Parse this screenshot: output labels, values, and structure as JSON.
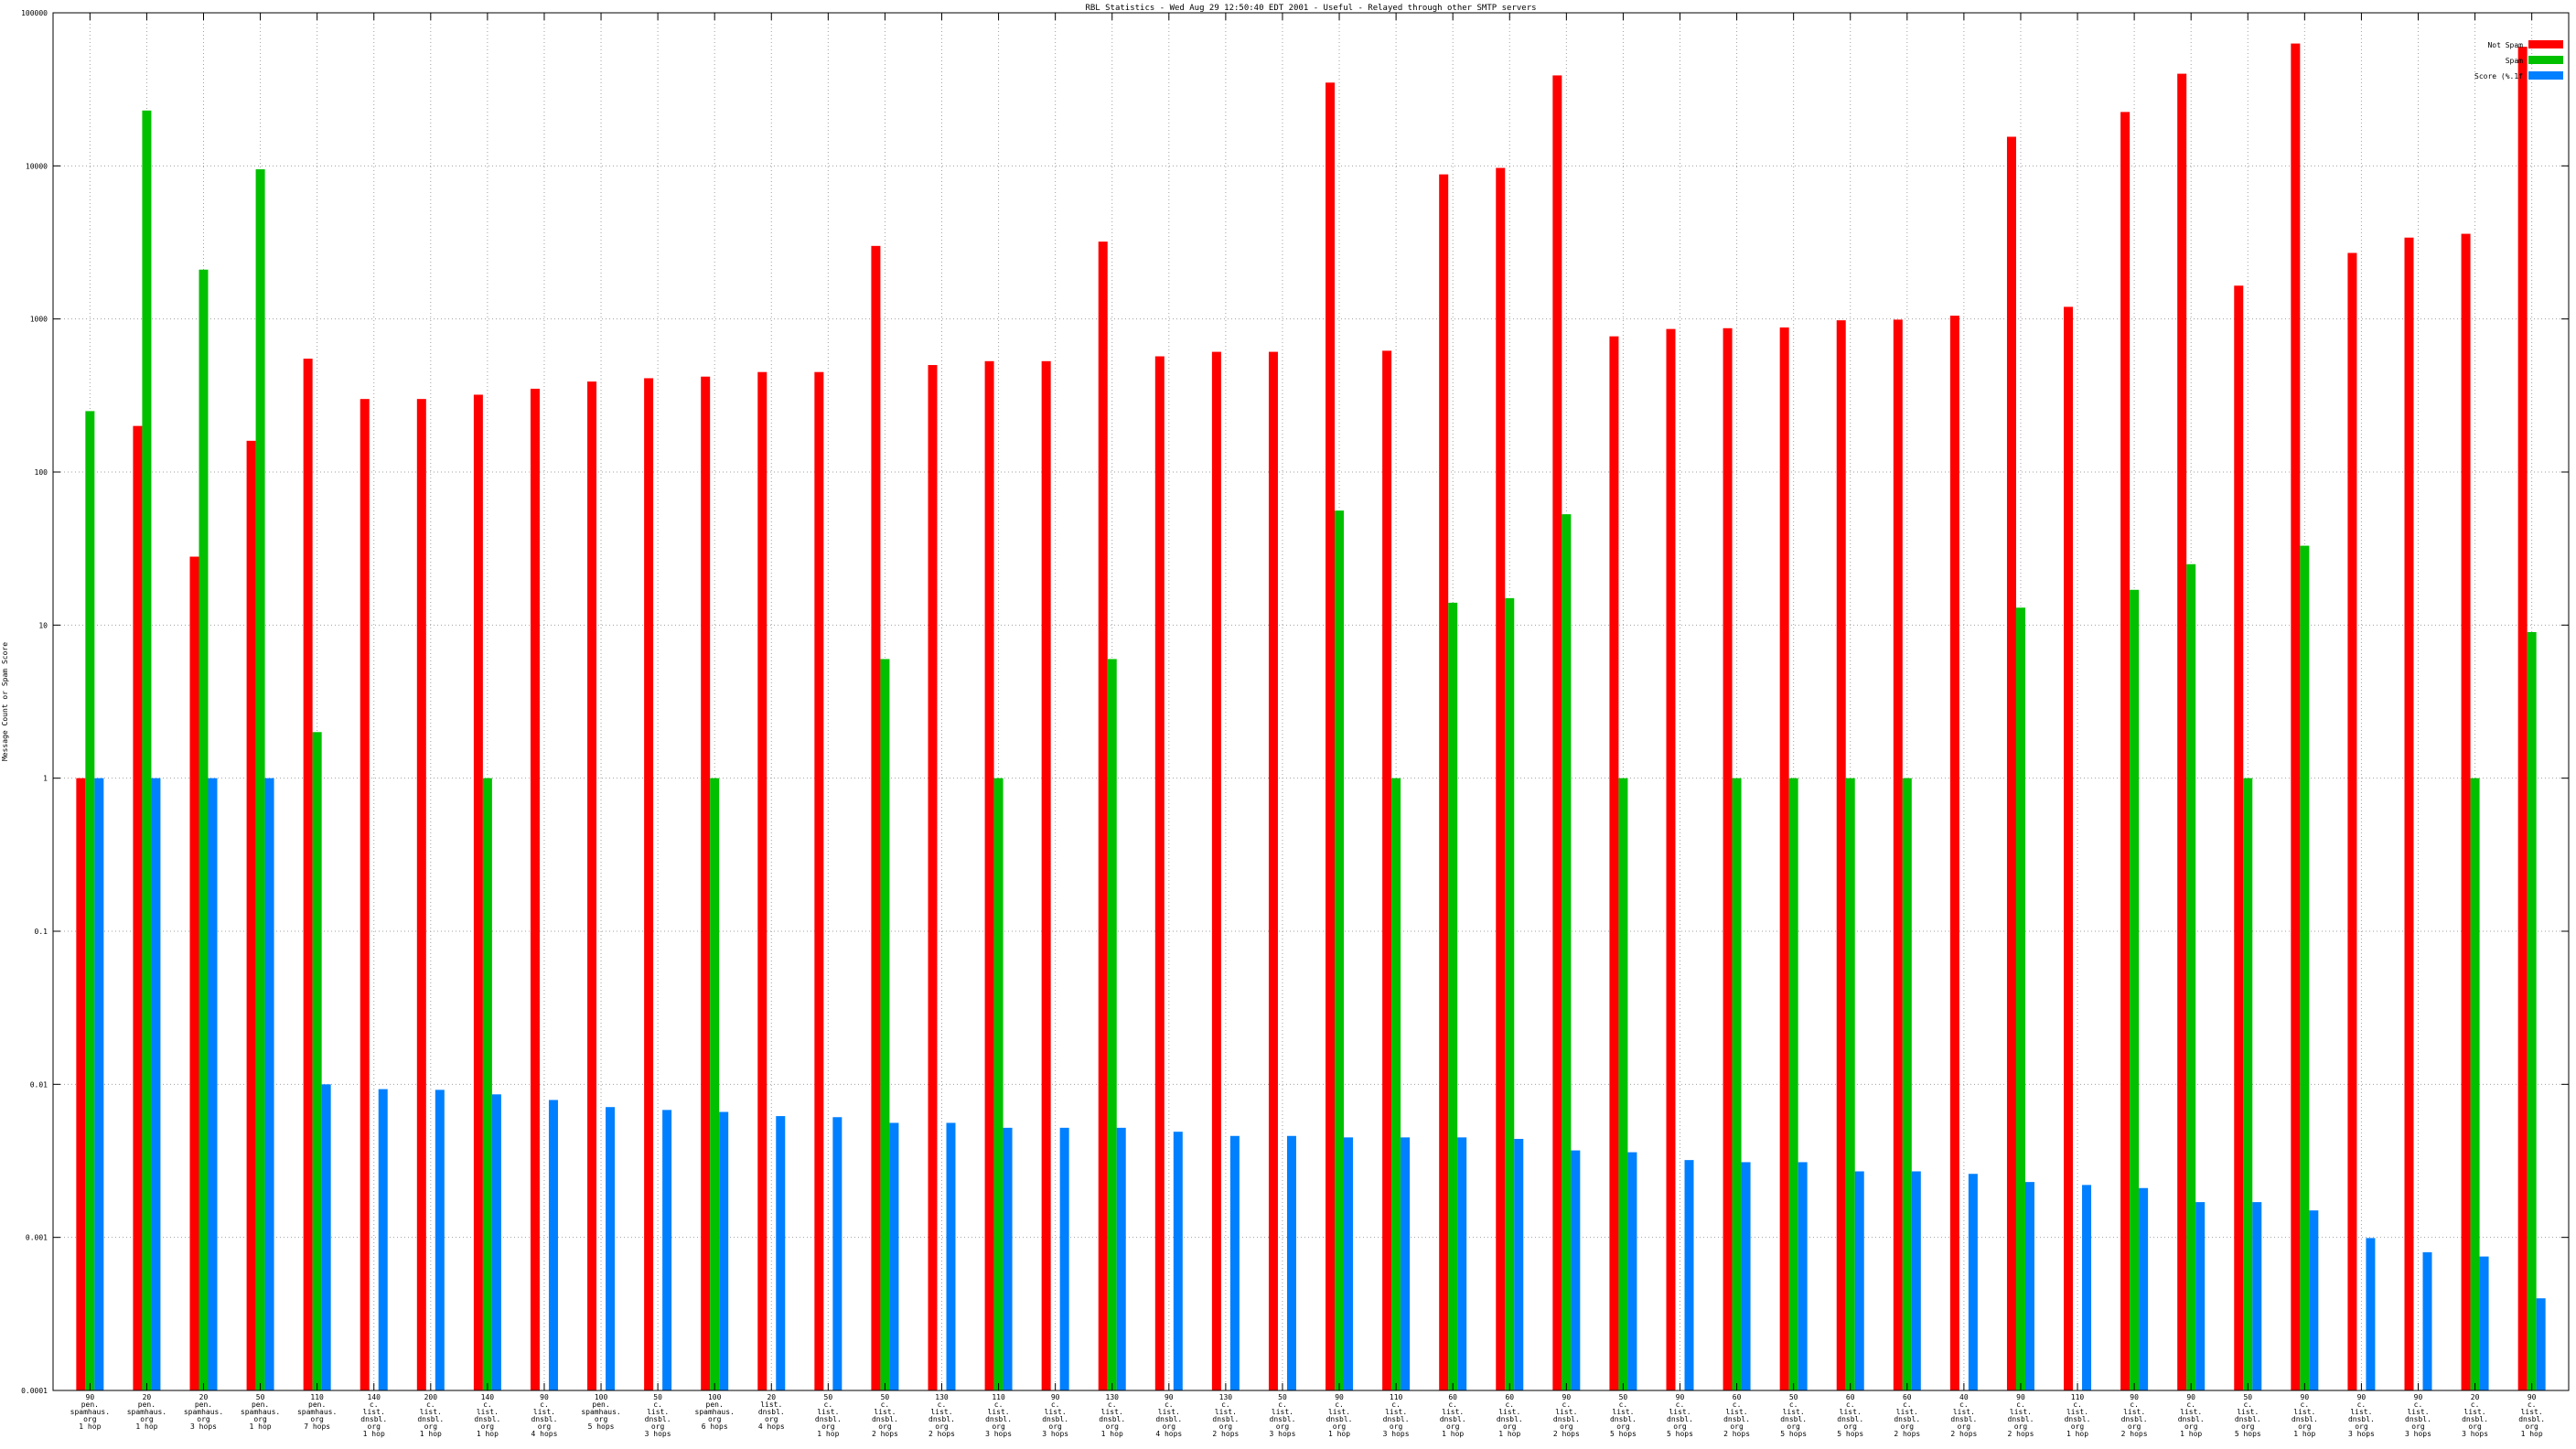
{
  "chart_data": {
    "type": "bar",
    "title": "RBL Statistics - Wed Aug 29 12:50:40 EDT 2001 - Useful - Relayed through other SMTP servers",
    "ylabel": "Message Count or Spam Score",
    "xlabel": "",
    "yscale": "log",
    "ylim": [
      0.0001,
      100000
    ],
    "yticks": [
      "0.0001",
      "0.001",
      "0.01",
      "0.1",
      "1",
      "10",
      "100",
      "1000",
      "10000",
      "100000"
    ],
    "grid": true,
    "legend_position": "top-right",
    "categories": [
      [
        "90",
        "pen.",
        "spamhaus.",
        "org",
        "1 hop"
      ],
      [
        "20",
        "pen.",
        "spamhaus.",
        "org",
        "1 hop"
      ],
      [
        "20",
        "pen.",
        "spamhaus.",
        "org",
        "3 hops"
      ],
      [
        "50",
        "pen.",
        "spamhaus.",
        "org",
        "1 hop"
      ],
      [
        "110",
        "pen.",
        "spamhaus.",
        "org",
        "7 hops"
      ],
      [
        "140",
        "c.",
        "list.",
        "dnsbl.",
        "org",
        "1 hop"
      ],
      [
        "200",
        "c.",
        "list.",
        "dnsbl.",
        "org",
        "1 hop"
      ],
      [
        "140",
        "c.",
        "list.",
        "dnsbl.",
        "org",
        "1 hop"
      ],
      [
        "90",
        "c.",
        "list.",
        "dnsbl.",
        "org",
        "4 hops"
      ],
      [
        "100",
        "pen.",
        "spamhaus.",
        "org",
        "5 hops"
      ],
      [
        "50",
        "c.",
        "list.",
        "dnsbl.",
        "org",
        "3 hops"
      ],
      [
        "100",
        "pen.",
        "spamhaus.",
        "org",
        "6 hops"
      ],
      [
        "20",
        "list.",
        "dnsbl.",
        "org",
        "4 hops"
      ],
      [
        "50",
        "c.",
        "list.",
        "dnsbl.",
        "org",
        "1 hop"
      ],
      [
        "50",
        "c.",
        "list.",
        "dnsbl.",
        "org",
        "2 hops"
      ],
      [
        "130",
        "c.",
        "list.",
        "dnsbl.",
        "org",
        "2 hops"
      ],
      [
        "110",
        "c.",
        "list.",
        "dnsbl.",
        "org",
        "3 hops"
      ],
      [
        "90",
        "c.",
        "list.",
        "dnsbl.",
        "org",
        "3 hops"
      ],
      [
        "130",
        "c.",
        "list.",
        "dnsbl.",
        "org",
        "1 hop"
      ],
      [
        "90",
        "c.",
        "list.",
        "dnsbl.",
        "org",
        "4 hops"
      ],
      [
        "130",
        "c.",
        "list.",
        "dnsbl.",
        "org",
        "2 hops"
      ],
      [
        "50",
        "c.",
        "list.",
        "dnsbl.",
        "org",
        "3 hops"
      ],
      [
        "90",
        "c.",
        "list.",
        "dnsbl.",
        "org",
        "1 hop"
      ],
      [
        "110",
        "c.",
        "list.",
        "dnsbl.",
        "org",
        "3 hops"
      ],
      [
        "60",
        "c.",
        "list.",
        "dnsbl.",
        "org",
        "1 hop"
      ],
      [
        "60",
        "c.",
        "list.",
        "dnsbl.",
        "org",
        "1 hop"
      ],
      [
        "90",
        "c.",
        "list.",
        "dnsbl.",
        "org",
        "2 hops"
      ],
      [
        "50",
        "c.",
        "list.",
        "dnsbl.",
        "org",
        "5 hops"
      ],
      [
        "90",
        "c.",
        "list.",
        "dnsbl.",
        "org",
        "5 hops"
      ],
      [
        "60",
        "c.",
        "list.",
        "dnsbl.",
        "org",
        "2 hops"
      ],
      [
        "50",
        "c.",
        "list.",
        "dnsbl.",
        "org",
        "5 hops"
      ],
      [
        "60",
        "c.",
        "list.",
        "dnsbl.",
        "org",
        "5 hops"
      ],
      [
        "60",
        "c.",
        "list.",
        "dnsbl.",
        "org",
        "2 hops"
      ],
      [
        "40",
        "c.",
        "list.",
        "dnsbl.",
        "org",
        "2 hops"
      ],
      [
        "90",
        "c.",
        "list.",
        "dnsbl.",
        "org",
        "2 hops"
      ],
      [
        "110",
        "c.",
        "list.",
        "dnsbl.",
        "org",
        "1 hop"
      ],
      [
        "90",
        "c.",
        "list.",
        "dnsbl.",
        "org",
        "2 hops"
      ],
      [
        "90",
        "c.",
        "list.",
        "dnsbl.",
        "org",
        "1 hop"
      ],
      [
        "50",
        "c.",
        "list.",
        "dnsbl.",
        "org",
        "5 hops"
      ],
      [
        "90",
        "c.",
        "list.",
        "dnsbl.",
        "org",
        "1 hop"
      ],
      [
        "90",
        "c.",
        "list.",
        "dnsbl.",
        "org",
        "3 hops"
      ],
      [
        "90",
        "c.",
        "list.",
        "dnsbl.",
        "org",
        "3 hops"
      ],
      [
        "20",
        "c.",
        "list.",
        "dnsbl.",
        "org",
        "3 hops"
      ],
      [
        "90",
        "c.",
        "list.",
        "dnsbl.",
        "org",
        "1 hop"
      ]
    ],
    "series": [
      {
        "name": "Not Spam",
        "color": "#ff0000",
        "values": [
          1,
          200,
          28,
          160,
          550,
          300,
          300,
          320,
          350,
          390,
          410,
          420,
          450,
          450,
          3000,
          500,
          530,
          530,
          3200,
          570,
          610,
          610,
          35000,
          620,
          8800,
          9700,
          39000,
          770,
          860,
          870,
          880,
          980,
          990,
          1050,
          15500,
          1200,
          22500,
          40000,
          1650,
          63000,
          2700,
          3400,
          3600,
          60000
        ]
      },
      {
        "name": "Spam",
        "color": "#00c000",
        "values": [
          250,
          23000,
          2100,
          9500,
          2,
          null,
          null,
          1,
          null,
          null,
          null,
          1,
          null,
          null,
          6,
          null,
          1,
          null,
          6,
          null,
          null,
          null,
          56,
          1,
          14,
          15,
          53,
          1,
          null,
          1,
          1,
          1,
          1,
          null,
          13,
          null,
          17,
          25,
          1,
          33,
          null,
          null,
          1,
          9
        ]
      },
      {
        "name": "Score (%.1f",
        "color": "#0080ff",
        "values": [
          1,
          1,
          1,
          1,
          0.01,
          0.0093,
          0.0092,
          0.0086,
          0.0079,
          0.0071,
          0.0068,
          0.0066,
          0.0062,
          0.0061,
          0.0056,
          0.0056,
          0.0052,
          0.0052,
          0.0052,
          0.0049,
          0.0046,
          0.0046,
          0.0045,
          0.0045,
          0.0045,
          0.0044,
          0.0037,
          0.0036,
          0.0032,
          0.0031,
          0.0031,
          0.0027,
          0.0027,
          0.0026,
          0.0023,
          0.0022,
          0.0021,
          0.0017,
          0.0017,
          0.0015,
          0.00099,
          0.0008,
          0.00075,
          0.0004
        ]
      }
    ]
  }
}
